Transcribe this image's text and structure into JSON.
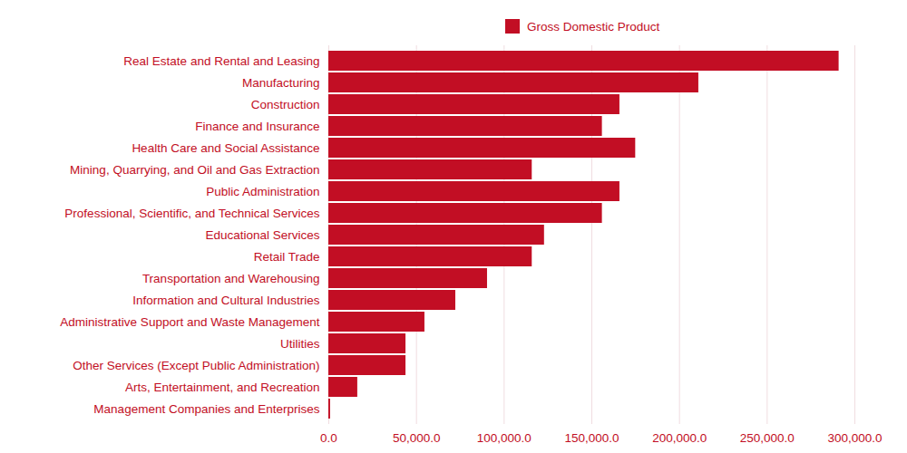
{
  "chart_data": {
    "type": "bar",
    "orientation": "horizontal",
    "categories": [
      "Real Estate and Rental and Leasing",
      "Manufacturing",
      "Construction",
      "Finance and Insurance",
      "Health Care and Social Assistance",
      "Mining, Quarrying, and Oil and Gas Extraction",
      "Public Administration",
      "Professional, Scientific, and Technical Services",
      "Educational Services",
      "Retail Trade",
      "Transportation and Warehousing",
      "Information and Cultural Industries",
      "Administrative Support and Waste Management",
      "Utilities",
      "Other Services (Except Public Administration)",
      "Arts, Entertainment, and Recreation",
      "Management Companies and Enterprises"
    ],
    "series": [
      {
        "name": "Gross Domestic Product",
        "color": "#c20e24",
        "values": [
          291000,
          211000,
          166000,
          156000,
          175000,
          116000,
          166000,
          156000,
          123000,
          116000,
          90500,
          72400,
          54800,
          44000,
          44000,
          16500,
          1000
        ]
      }
    ],
    "xlim": [
      0,
      300000
    ],
    "xticks": [
      {
        "value": 0,
        "label": "0.0"
      },
      {
        "value": 50000,
        "label": "50,000.0"
      },
      {
        "value": 100000,
        "label": "100,000.0"
      },
      {
        "value": 150000,
        "label": "150,000.0"
      },
      {
        "value": 200000,
        "label": "200,000.0"
      },
      {
        "value": 250000,
        "label": "250,000.0"
      },
      {
        "value": 300000,
        "label": "300,000.0"
      }
    ],
    "grid": true,
    "legend": "top"
  }
}
